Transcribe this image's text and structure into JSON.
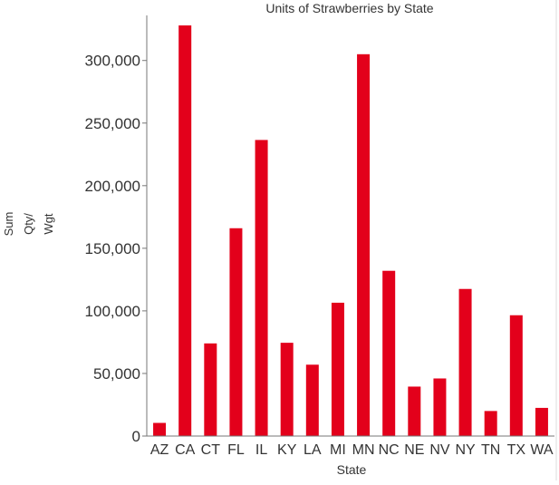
{
  "chart_data": {
    "type": "bar",
    "title": "Units of Strawberries by State",
    "xlabel": "State",
    "ylabel_lines": [
      "Sum",
      "Qty/",
      "Wgt"
    ],
    "categories": [
      "AZ",
      "CA",
      "CT",
      "FL",
      "IL",
      "KY",
      "LA",
      "MI",
      "MN",
      "NC",
      "NE",
      "NV",
      "NY",
      "TN",
      "TX",
      "WA"
    ],
    "series": [
      {
        "values": [
          10500,
          328000,
          74000,
          166000,
          236500,
          74500,
          57000,
          106500,
          305000,
          132000,
          39500,
          46000,
          117500,
          20000,
          96500,
          22500
        ]
      }
    ],
    "ylim": [
      0,
      336000
    ],
    "yticks": [
      0,
      50000,
      100000,
      150000,
      200000,
      250000,
      300000
    ],
    "ytick_labels": [
      "0",
      "50,000",
      "100,000",
      "150,000",
      "200,000",
      "250,000",
      "300,000"
    ],
    "bar_color": "#e3001b",
    "grid": false,
    "legend": "none"
  }
}
